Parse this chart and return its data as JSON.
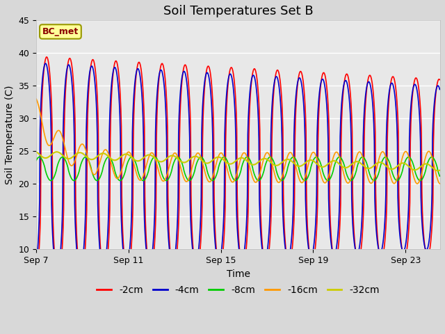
{
  "title": "Soil Temperatures Set B",
  "xlabel": "Time",
  "ylabel": "Soil Temperature (C)",
  "ylim": [
    10,
    45
  ],
  "xlim_days": [
    0,
    17.5
  ],
  "x_ticks_days": [
    0,
    4,
    8,
    12,
    16
  ],
  "x_tick_labels": [
    "Sep 7",
    "Sep 11",
    "Sep 15",
    "Sep 19",
    "Sep 23"
  ],
  "fig_bg_color": "#d8d8d8",
  "plot_bg_color": "#e8e8e8",
  "annotation_text": "BC_met",
  "annotation_box_color": "#ffff99",
  "annotation_text_color": "#8b0000",
  "annotation_edge_color": "#999900",
  "series_colors": [
    "#ff0000",
    "#0000cc",
    "#00cc00",
    "#ff9900",
    "#cccc00"
  ],
  "series_labels": [
    "-2cm",
    "-4cm",
    "-8cm",
    "-16cm",
    "-32cm"
  ],
  "series_linewidths": [
    1.2,
    1.2,
    1.2,
    1.2,
    1.5
  ],
  "grid_color": "#ffffff",
  "title_fontsize": 13,
  "label_fontsize": 10,
  "tick_fontsize": 9,
  "legend_fontsize": 10
}
